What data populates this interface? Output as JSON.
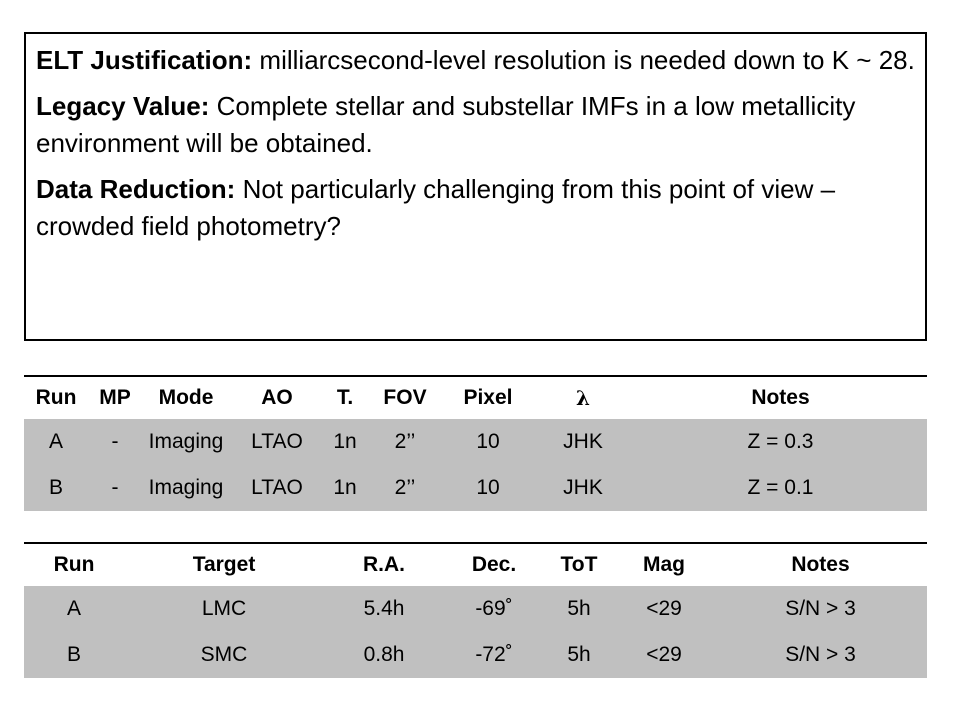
{
  "text_box": {
    "paragraphs": [
      {
        "label": "ELT Justification:",
        "text": " milliarcsecond-level resolution is needed down to K ~ 28."
      },
      {
        "label": "Legacy Value:",
        "text": " Complete stellar and substellar IMFs in a low metallicity environment will be obtained."
      },
      {
        "label": "Data Reduction:",
        "text": " Not particularly challenging from this point of view –crowded field photometry?"
      }
    ]
  },
  "table1": {
    "headers": [
      "Run",
      "MP",
      "Mode",
      "AO",
      "T.",
      "FOV",
      "Pixel",
      "λ",
      "Notes"
    ],
    "rows": [
      [
        "A",
        "-",
        "Imaging",
        "LTAO",
        "1n",
        "2’’",
        "10",
        "JHK",
        "Z = 0.3"
      ],
      [
        "B",
        "-",
        "Imaging",
        "LTAO",
        "1n",
        "2’’",
        "10",
        "JHK",
        "Z = 0.1"
      ]
    ]
  },
  "table2": {
    "headers": [
      "Run",
      "Target",
      "R.A.",
      "Dec.",
      "ToT",
      "Mag",
      "Notes"
    ],
    "rows": [
      [
        "A",
        "LMC",
        "5.4h",
        "-69˚",
        "5h",
        "<29",
        "S/N > 3"
      ],
      [
        "B",
        "SMC",
        "0.8h",
        "-72˚",
        "5h",
        "<29",
        "S/N > 3"
      ]
    ]
  }
}
